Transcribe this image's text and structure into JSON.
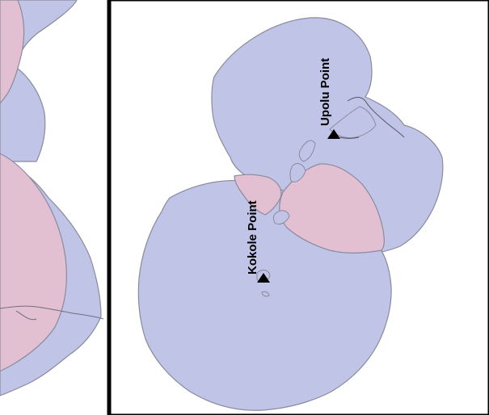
{
  "map": {
    "panels": [
      "left-inset",
      "right-main"
    ],
    "colors": {
      "coverage_blue": "#c0c4e6",
      "coverage_pink": "#e2c0d2",
      "coverage_stroke": "#8a8a9e",
      "frame": "#000000",
      "background": "#ffffff",
      "marker": "#000000"
    },
    "labels": {
      "upolu": "Upolu Point",
      "kokole": "Kokole Point"
    },
    "markers": [
      {
        "name": "upolu-point-marker",
        "shape": "triangle"
      },
      {
        "name": "kokole-point-marker",
        "shape": "triangle"
      }
    ]
  }
}
